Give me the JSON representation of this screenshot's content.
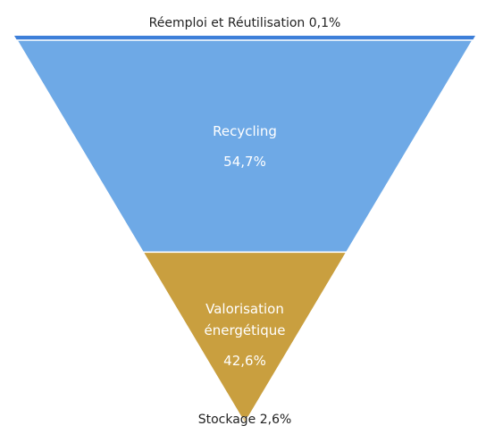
{
  "chart_data": {
    "type": "funnel",
    "categories": [
      "Réemploi et Réutilisation",
      "Recycling",
      "Valorisation énergétique",
      "Stockage"
    ],
    "values": [
      0.1,
      54.7,
      42.6,
      2.6
    ],
    "value_labels": [
      "0,1%",
      "54,7%",
      "42,6%",
      "2,6%"
    ],
    "colors": [
      "#3d7fd9",
      "#6ea9e6",
      "#c99f3f",
      "#e3c98e"
    ]
  }
}
